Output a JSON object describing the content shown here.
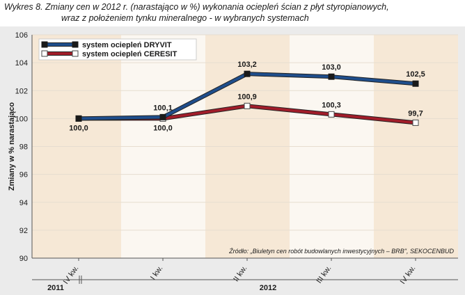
{
  "header": {
    "line1": "Wykres 8. Zmiany cen w 2012 r. (narastająco w %) wykonania ociepleń ścian z płyt styropianowych,",
    "line2": "wraz z położeniem tynku mineralnego - w wybranych systemach"
  },
  "source": "Źródło: „Biuletyn cen robót budowlanych inwestycyjnych – BRB\", SEKOCENBUD",
  "colors": {
    "dryvit": "#1f4e8c",
    "ceresit": "#a11d2a",
    "band_light": "#fbf7f1",
    "band_dark": "#f6e8d6"
  },
  "chart_data": {
    "type": "line",
    "ylabel": "Zmiany w % narastająco",
    "ylim": [
      90,
      106
    ],
    "yticks": [
      "90",
      "92",
      "94",
      "96",
      "98",
      "100",
      "102",
      "104",
      "106"
    ],
    "categories": [
      "IV kw.",
      "I kw.",
      "II kw.",
      "III kw.",
      "IV kw."
    ],
    "years": [
      {
        "label": "2011"
      },
      {
        "label": "2012"
      }
    ],
    "series": [
      {
        "name": "system ociepleń DRYVIT",
        "values": [
          100.0,
          100.1,
          103.2,
          103.0,
          102.5
        ],
        "labels": [
          "",
          "100,1",
          "103,2",
          "103,0",
          "102,5"
        ]
      },
      {
        "name": "system ociepleń CERESIT",
        "values": [
          100.0,
          100.0,
          100.9,
          100.3,
          99.7
        ],
        "labels": [
          "100,0",
          "100,0",
          "100,9",
          "100,3",
          "99,7"
        ]
      }
    ],
    "grid": true,
    "legend": "top-left"
  }
}
